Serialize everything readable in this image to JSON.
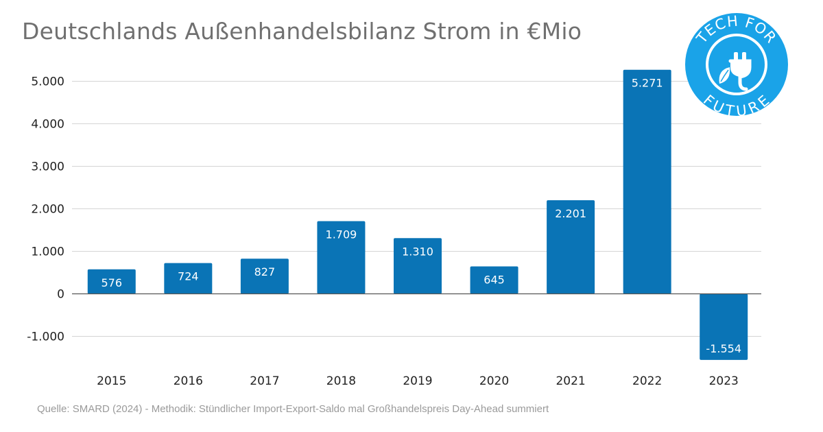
{
  "title": "Deutschlands Außenhandelsbilanz Strom in €Mio",
  "source": "Quelle: SMARD (2024) - Methodik: Stündlicher Import-Export-Saldo mal Großhandelspreis Day-Ahead summiert",
  "logo": {
    "line1": "TECH FOR",
    "line2": "FUTURE",
    "icon": "plug-leaf-icon",
    "color": "#1aa3e8"
  },
  "colors": {
    "bar": "#0a74b6",
    "bar_label": "#ffffff",
    "grid": "#d4d4d4",
    "zero_line": "#555555",
    "tick": "#222222"
  },
  "chart_data": {
    "type": "bar",
    "categories": [
      "2015",
      "2016",
      "2017",
      "2018",
      "2019",
      "2020",
      "2021",
      "2022",
      "2023"
    ],
    "values": [
      576,
      724,
      827,
      1709,
      1310,
      645,
      2201,
      5271,
      -1554
    ],
    "data_labels": [
      "576",
      "724",
      "827",
      "1.709",
      "1.310",
      "645",
      "2.201",
      "5.271",
      "-1.554"
    ],
    "ylim": [
      -1554,
      5271
    ],
    "yticks": [
      -1000,
      0,
      1000,
      2000,
      3000,
      4000,
      5000
    ],
    "ytick_labels": [
      "-1.000",
      "0",
      "1.000",
      "2.000",
      "3.000",
      "4.000",
      "5.000"
    ],
    "grid": true,
    "legend": false
  }
}
